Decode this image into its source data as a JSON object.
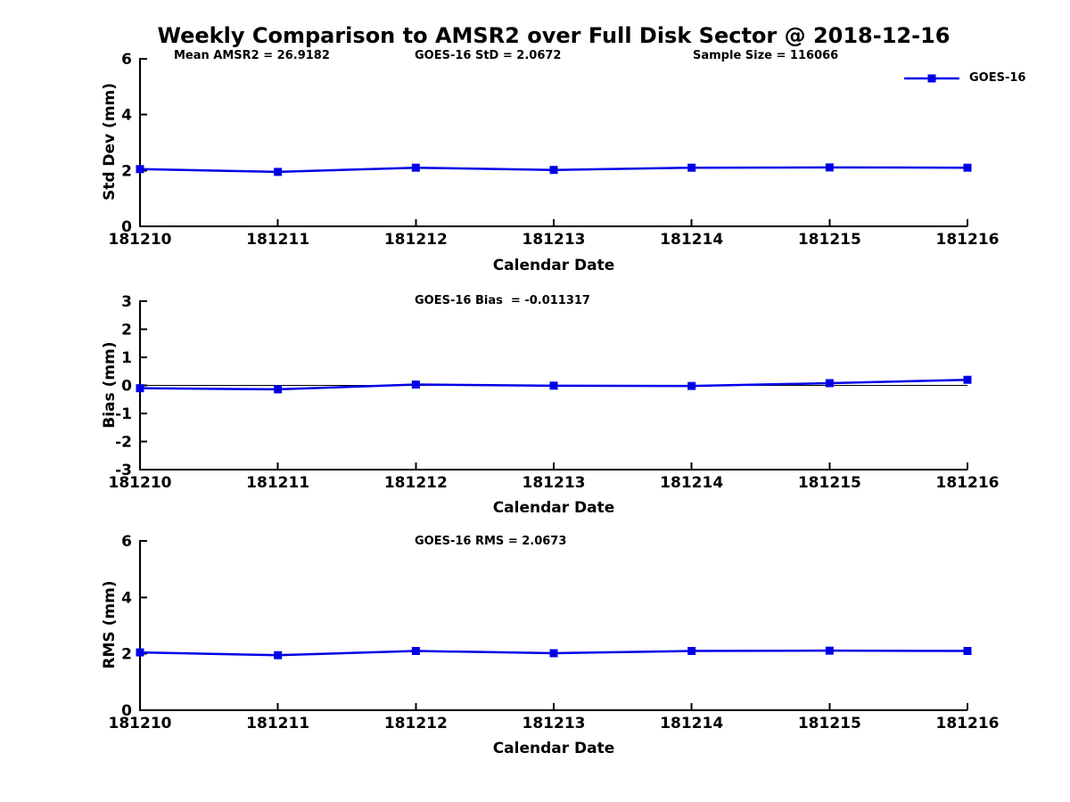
{
  "header": {
    "title": "Weekly Comparison to AMSR2 over Full Disk Sector @ 2018-12-16",
    "stats": [
      "Mean AMSR2 = 26.9182",
      "GOES-16 StD = 2.0672",
      "Sample Size = 116066"
    ]
  },
  "legend": {
    "label": "GOES-16"
  },
  "colors": {
    "series": "#0000E8",
    "axis": "#000000",
    "zero_line": "#000000"
  },
  "chart_data": [
    {
      "type": "line",
      "name": "std-dev",
      "ylabel": "Std Dev (mm)",
      "xlabel": "Calendar Date",
      "categories": [
        "181210",
        "181211",
        "181212",
        "181213",
        "181214",
        "181215",
        "181216"
      ],
      "ylim": [
        0,
        6
      ],
      "yticks": [
        0,
        2,
        4,
        6
      ],
      "grid": false,
      "legend_position": "top-right-outside",
      "series": [
        {
          "name": "GOES-16",
          "color": "#0000E8",
          "marker": "square",
          "values": [
            2.05,
            1.95,
            2.1,
            2.02,
            2.1,
            2.11,
            2.1
          ]
        }
      ]
    },
    {
      "type": "line",
      "name": "bias",
      "annotation": "GOES-16 Bias  = -0.011317",
      "ylabel": "Bias (mm)",
      "xlabel": "Calendar Date",
      "categories": [
        "181210",
        "181211",
        "181212",
        "181213",
        "181214",
        "181215",
        "181216"
      ],
      "ylim": [
        -3,
        3
      ],
      "yticks": [
        3,
        2,
        1,
        0,
        -1,
        -2,
        -3
      ],
      "zero_line": true,
      "grid": false,
      "series": [
        {
          "name": "GOES-16",
          "color": "#0000E8",
          "marker": "square",
          "values": [
            -0.1,
            -0.14,
            0.03,
            -0.01,
            -0.02,
            0.08,
            0.2
          ]
        }
      ]
    },
    {
      "type": "line",
      "name": "rms",
      "annotation": "GOES-16 RMS = 2.0673",
      "ylabel": "RMS (mm)",
      "xlabel": "Calendar Date",
      "categories": [
        "181210",
        "181211",
        "181212",
        "181213",
        "181214",
        "181215",
        "181216"
      ],
      "ylim": [
        0,
        6
      ],
      "yticks": [
        0,
        2,
        4,
        6
      ],
      "grid": false,
      "series": [
        {
          "name": "GOES-16",
          "color": "#0000E8",
          "marker": "square",
          "values": [
            2.05,
            1.95,
            2.1,
            2.02,
            2.1,
            2.11,
            2.1
          ]
        }
      ]
    }
  ]
}
